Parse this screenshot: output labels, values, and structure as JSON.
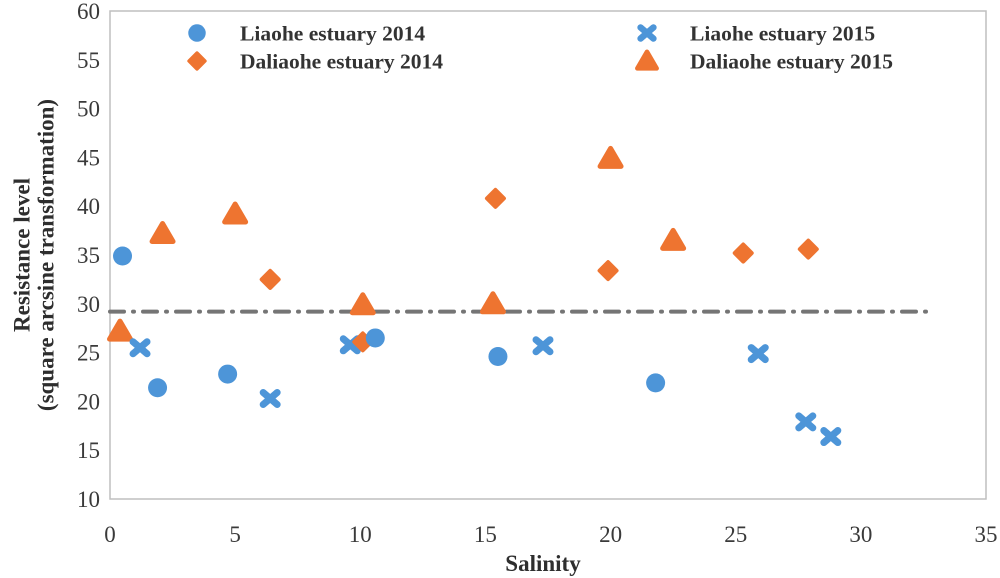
{
  "chart_data": {
    "type": "scatter",
    "title": "",
    "xlabel": "Salinity",
    "ylabel_line1": "Resistance level",
    "ylabel_line2": "(square arcsine transformation)",
    "xlim": [
      0,
      35
    ],
    "ylim": [
      10,
      60
    ],
    "xticks": [
      0,
      5,
      10,
      15,
      20,
      25,
      30,
      35
    ],
    "yticks": [
      10,
      15,
      20,
      25,
      30,
      35,
      40,
      45,
      50,
      55,
      60
    ],
    "grid": false,
    "legend_position": "top-inside, two columns",
    "series": [
      {
        "name": "Liaohe estuary 2014",
        "marker": "circle",
        "color": "#4d95d8",
        "points": [
          [
            0.5,
            34.9
          ],
          [
            1.9,
            21.4
          ],
          [
            4.7,
            22.8
          ],
          [
            10.6,
            26.5
          ],
          [
            15.5,
            24.6
          ],
          [
            21.8,
            21.9
          ]
        ]
      },
      {
        "name": "Daliaohe estuary 2014",
        "marker": "diamond",
        "color": "#ee7430",
        "points": [
          [
            6.4,
            32.5
          ],
          [
            10.1,
            26.1
          ],
          [
            15.4,
            40.8
          ],
          [
            19.9,
            33.4
          ],
          [
            25.3,
            35.2
          ],
          [
            27.9,
            35.6
          ]
        ]
      },
      {
        "name": "Liaohe estuary 2015",
        "marker": "x",
        "color": "#4d95d8",
        "points": [
          [
            1.2,
            25.5
          ],
          [
            6.4,
            20.3
          ],
          [
            9.6,
            25.8
          ],
          [
            17.3,
            25.7
          ],
          [
            25.9,
            24.9
          ],
          [
            27.8,
            17.9
          ],
          [
            28.8,
            16.4
          ]
        ]
      },
      {
        "name": "Daliaohe estuary 2015",
        "marker": "triangle",
        "color": "#ee7430",
        "points": [
          [
            0.4,
            27.2
          ],
          [
            2.1,
            37.2
          ],
          [
            5.0,
            39.2
          ],
          [
            10.1,
            29.9
          ],
          [
            15.3,
            30.0
          ],
          [
            20.0,
            44.9
          ],
          [
            22.5,
            36.5
          ]
        ]
      }
    ],
    "reference_line": {
      "y": 29.2,
      "x_start": 0,
      "x_end": 32.8,
      "style": "dash-dot",
      "color": "#757575"
    }
  },
  "colors": {
    "blue": "#4d95d8",
    "orange": "#ee7430",
    "frame": "#bfbfbf",
    "tick_text": "#3a3a3a",
    "legend_text": "#333333",
    "reference": "#757575"
  }
}
